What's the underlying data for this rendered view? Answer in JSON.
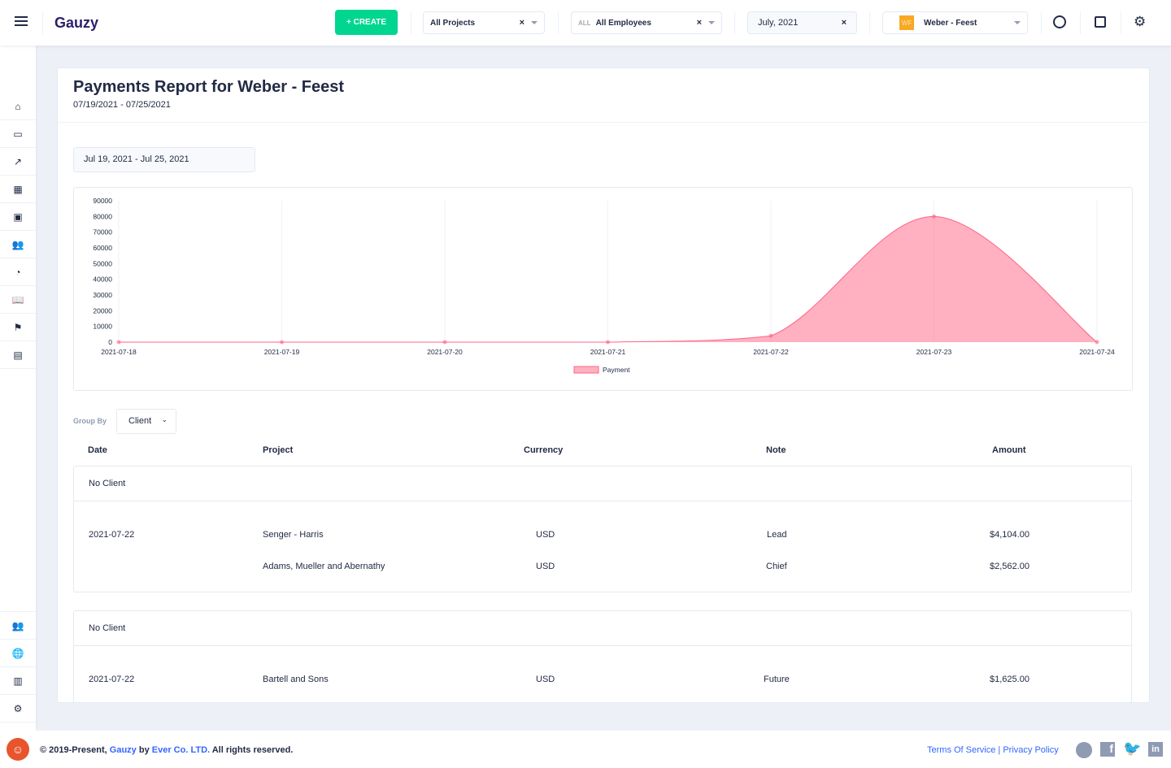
{
  "header": {
    "logo": "Gauzy",
    "create_label": "+ CREATE",
    "projects": "All Projects",
    "employees_prefix": "ALL",
    "employees": "All Employees",
    "date": "July, 2021",
    "org_initials": "WF",
    "organization": "Weber - Feest",
    "clear": "×"
  },
  "report": {
    "title": "Payments Report for Weber - Feest",
    "range": "07/19/2021 - 07/25/2021",
    "date_picker": "Jul 19, 2021 - Jul 25, 2021"
  },
  "chart_data": {
    "type": "area",
    "x": [
      "2021-07-18",
      "2021-07-19",
      "2021-07-20",
      "2021-07-21",
      "2021-07-22",
      "2021-07-23",
      "2021-07-24"
    ],
    "series": [
      {
        "name": "Payment",
        "values": [
          0,
          0,
          0,
          0,
          4000,
          80000,
          0
        ]
      }
    ],
    "ylim": [
      0,
      90000
    ],
    "yticks": [
      "90000",
      "80000",
      "70000",
      "60000",
      "50000",
      "40000",
      "30000",
      "20000",
      "10000",
      "0"
    ],
    "legend": "bottom",
    "color": "#ff6384"
  },
  "group_by": {
    "label": "Group By",
    "value": "Client"
  },
  "table": {
    "headers": [
      "Date",
      "Project",
      "Currency",
      "Note",
      "Amount"
    ],
    "groups": [
      {
        "name": "No Client",
        "rows": [
          {
            "date": "2021-07-22",
            "project": "Senger - Harris",
            "currency": "USD",
            "note": "Lead",
            "amount": "$4,104.00"
          },
          {
            "date": "",
            "project": "Adams, Mueller and Abernathy",
            "currency": "USD",
            "note": "Chief",
            "amount": "$2,562.00"
          }
        ]
      },
      {
        "name": "No Client",
        "rows": [
          {
            "date": "2021-07-22",
            "project": "Bartell and Sons",
            "currency": "USD",
            "note": "Future",
            "amount": "$1,625.00"
          }
        ]
      }
    ]
  },
  "footer": {
    "copy": "© 2019-Present,",
    "gauzy": "Gauzy",
    "by": "by",
    "ever": "Ever Co. LTD.",
    "rights": "All rights reserved.",
    "terms": "Terms Of Service",
    "sep": "|",
    "privacy": "Privacy Policy"
  }
}
